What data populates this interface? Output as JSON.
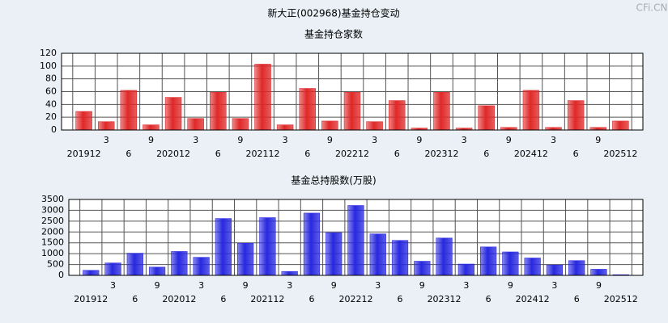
{
  "title": "新大正(002968)基金持仓变动",
  "chart_data": [
    {
      "type": "bar",
      "title": "基金持仓家数",
      "categories": [
        "201912",
        "3",
        "6",
        "9",
        "202012",
        "3",
        "6",
        "9",
        "202112",
        "3",
        "6",
        "9",
        "202212",
        "3",
        "6",
        "9",
        "202312",
        "3",
        "6",
        "9",
        "202412",
        "3",
        "6",
        "9",
        "202512"
      ],
      "values": [
        29,
        13,
        62,
        8,
        51,
        18,
        59,
        18,
        103,
        8,
        65,
        14,
        59,
        13,
        46,
        3,
        59,
        3,
        38,
        4,
        62,
        4,
        46,
        4,
        14
      ],
      "color": "#e02828",
      "ylim": [
        0,
        120
      ],
      "yticks": [
        0,
        20,
        40,
        60,
        80,
        100,
        120
      ],
      "grid": true
    },
    {
      "type": "bar",
      "title": "基金总持股数(万股)",
      "categories": [
        "201912",
        "3",
        "6",
        "9",
        "202012",
        "3",
        "6",
        "9",
        "202112",
        "3",
        "6",
        "9",
        "202212",
        "3",
        "6",
        "9",
        "202312",
        "3",
        "6",
        "9",
        "202412",
        "3",
        "6",
        "9",
        "202512"
      ],
      "values": [
        230,
        570,
        1020,
        380,
        1100,
        830,
        2620,
        1480,
        2660,
        180,
        2870,
        1970,
        3220,
        1910,
        1610,
        650,
        1720,
        520,
        1310,
        1080,
        800,
        480,
        680,
        280,
        30
      ],
      "color": "#2828e0",
      "ylim": [
        0,
        3500
      ],
      "yticks": [
        0,
        500,
        1000,
        1500,
        2000,
        2500,
        3000,
        3500
      ],
      "grid": true
    }
  ]
}
